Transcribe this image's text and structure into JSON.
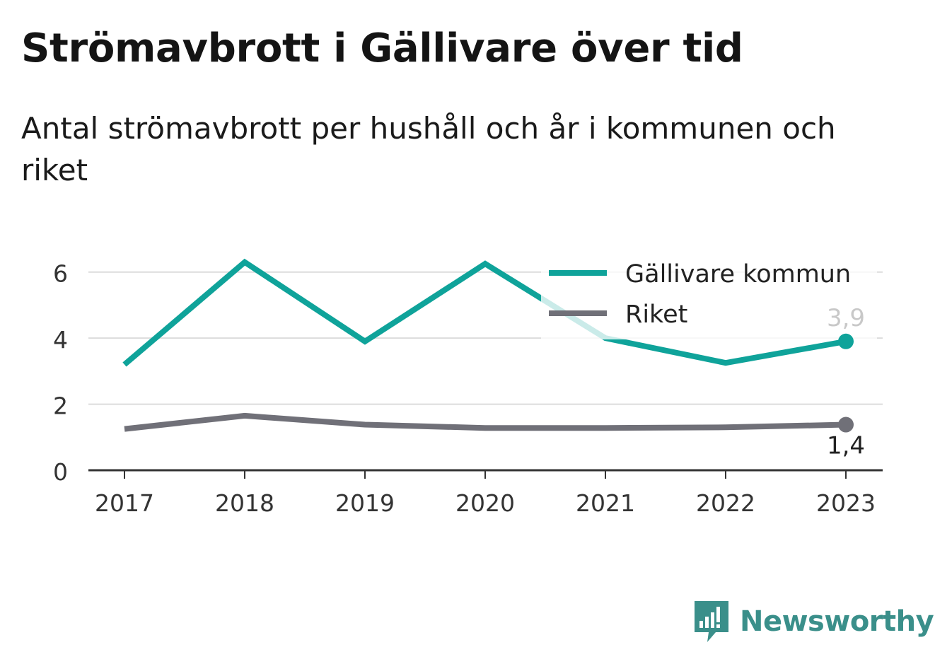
{
  "title": "Strömavbrott i Gällivare över tid",
  "subtitle": "Antal strömavbrott per hushåll och år i kommunen och riket",
  "brand": {
    "name": "Newsworthy",
    "icon": "newsworthy-logo-icon",
    "color": "#3a8f8a"
  },
  "chart_data": {
    "type": "line",
    "categories": [
      "2017",
      "2018",
      "2019",
      "2020",
      "2021",
      "2022",
      "2023"
    ],
    "series": [
      {
        "name": "Gällivare kommun",
        "color": "#0fa39a",
        "values": [
          3.2,
          6.3,
          3.9,
          6.25,
          4.0,
          3.25,
          3.9
        ],
        "end_label": "3,9"
      },
      {
        "name": "Riket",
        "color": "#707078",
        "values": [
          1.25,
          1.65,
          1.38,
          1.28,
          1.28,
          1.3,
          1.38
        ],
        "end_label": "1,4"
      }
    ],
    "y_ticks": [
      "0",
      "2",
      "4",
      "6"
    ],
    "ylim": [
      0,
      6.7
    ],
    "grid": true,
    "legend": "top-right"
  }
}
